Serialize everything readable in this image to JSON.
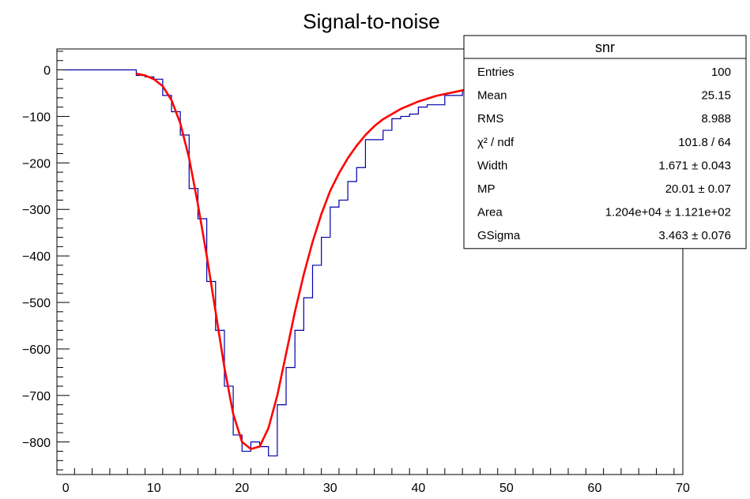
{
  "chart_data": {
    "type": "line",
    "title": "Signal-to-noise",
    "xlabel": "",
    "ylabel": "",
    "xlim": [
      -1,
      70
    ],
    "ylim": [
      -870,
      45
    ],
    "x_ticks": [
      0,
      10,
      20,
      30,
      40,
      50,
      60,
      70
    ],
    "y_ticks": [
      0,
      -100,
      -200,
      -300,
      -400,
      -500,
      -600,
      -700,
      -800
    ],
    "grid": false,
    "histogram": {
      "name": "snr",
      "color": "#0000aa",
      "bin_edges": [
        8,
        9,
        10,
        11,
        12,
        13,
        14,
        15,
        16,
        17,
        18,
        19,
        20,
        21,
        22,
        23,
        24,
        25,
        26,
        27,
        28,
        29,
        30,
        31,
        32,
        33,
        34,
        35,
        36,
        37,
        38,
        39,
        40,
        41,
        42,
        43,
        44,
        45,
        46,
        47,
        48,
        49,
        50
      ],
      "values": [
        -12,
        -15,
        -20,
        -55,
        -90,
        -140,
        -255,
        -320,
        -455,
        -560,
        -680,
        -785,
        -820,
        -800,
        -810,
        -830,
        -720,
        -640,
        -560,
        -490,
        -420,
        -360,
        -295,
        -280,
        -240,
        -210,
        -150,
        -150,
        -130,
        -105,
        -100,
        -95,
        -80,
        -75,
        -75,
        -55,
        -55,
        -45,
        -40,
        -35,
        -30,
        -28
      ]
    },
    "fit": {
      "name": "fit",
      "color": "#ff0000",
      "x": [
        8,
        9,
        10,
        11,
        12,
        13,
        14,
        15,
        16,
        17,
        18,
        19,
        20,
        21,
        22,
        23,
        24,
        25,
        26,
        27,
        28,
        29,
        30,
        31,
        32,
        33,
        34,
        35,
        36,
        38,
        40,
        42,
        45,
        50,
        55,
        60,
        65,
        69
      ],
      "y": [
        -8,
        -12,
        -20,
        -35,
        -65,
        -115,
        -190,
        -290,
        -400,
        -520,
        -640,
        -740,
        -800,
        -815,
        -810,
        -770,
        -700,
        -610,
        -520,
        -440,
        -370,
        -310,
        -260,
        -222,
        -190,
        -163,
        -140,
        -121,
        -106,
        -84,
        -68,
        -56,
        -44,
        -31,
        -22,
        -16,
        -11,
        -8
      ]
    },
    "stats_box": {
      "title": "snr",
      "placement": "top-right",
      "rows": [
        {
          "label": "Entries",
          "value": "100"
        },
        {
          "label": "Mean",
          "value": "25.15"
        },
        {
          "label": "RMS",
          "value": "8.988"
        },
        {
          "label": "χ² / ndf",
          "value": "101.8 / 64"
        },
        {
          "label": "Width",
          "value": "1.671 ± 0.043"
        },
        {
          "label": "MP",
          "value": "20.01 ± 0.07"
        },
        {
          "label": "Area",
          "value": "1.204e+04 ± 1.121e+02"
        },
        {
          "label": "GSigma",
          "value": "3.463 ± 0.076"
        }
      ]
    }
  }
}
